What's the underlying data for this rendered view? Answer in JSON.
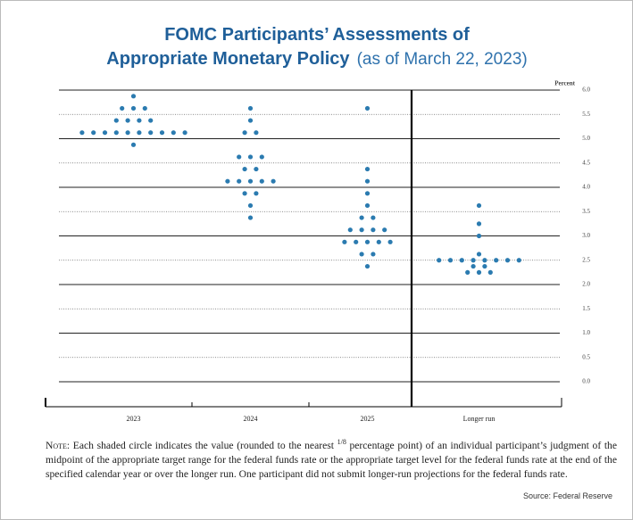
{
  "chart_data": {
    "type": "dot",
    "title": "FOMC Participants’ Assessments of",
    "title_line2": "Appropriate Monetary Policy",
    "subtitle": "(as of March 22, 2023)",
    "y_label": "Percent",
    "categories": [
      "2023",
      "2024",
      "2025",
      "Longer run"
    ],
    "values": [
      [
        {
          "rate": 5.875,
          "count": 1
        },
        {
          "rate": 5.625,
          "count": 3
        },
        {
          "rate": 5.375,
          "count": 4
        },
        {
          "rate": 5.125,
          "count": 10
        },
        {
          "rate": 4.875,
          "count": 1
        }
      ],
      [
        {
          "rate": 5.625,
          "count": 1
        },
        {
          "rate": 5.375,
          "count": 1
        },
        {
          "rate": 5.125,
          "count": 2
        },
        {
          "rate": 4.625,
          "count": 3
        },
        {
          "rate": 4.375,
          "count": 2
        },
        {
          "rate": 4.125,
          "count": 5
        },
        {
          "rate": 3.875,
          "count": 2
        },
        {
          "rate": 3.625,
          "count": 1
        },
        {
          "rate": 3.375,
          "count": 1
        }
      ],
      [
        {
          "rate": 5.625,
          "count": 1
        },
        {
          "rate": 4.375,
          "count": 1
        },
        {
          "rate": 4.125,
          "count": 1
        },
        {
          "rate": 3.875,
          "count": 1
        },
        {
          "rate": 3.625,
          "count": 1
        },
        {
          "rate": 3.375,
          "count": 2
        },
        {
          "rate": 3.125,
          "count": 4
        },
        {
          "rate": 2.875,
          "count": 5
        },
        {
          "rate": 2.625,
          "count": 2
        },
        {
          "rate": 2.375,
          "count": 1
        }
      ],
      [
        {
          "rate": 3.625,
          "count": 1
        },
        {
          "rate": 3.25,
          "count": 1
        },
        {
          "rate": 3.0,
          "count": 1
        },
        {
          "rate": 2.625,
          "count": 1
        },
        {
          "rate": 2.5,
          "count": 8
        },
        {
          "rate": 2.375,
          "count": 2
        },
        {
          "rate": 2.25,
          "count": 3
        }
      ]
    ],
    "color": "#2b7bb0",
    "ylim": [
      0,
      6
    ],
    "yticks": [
      {
        "value": 0,
        "label": "0.0"
      },
      {
        "value": 0.5,
        "label": "0.5"
      },
      {
        "value": 1,
        "label": "1.0"
      },
      {
        "value": 1.5,
        "label": "1.5"
      },
      {
        "value": 2,
        "label": "2.0"
      },
      {
        "value": 2.5,
        "label": "2.5"
      },
      {
        "value": 3,
        "label": "3.0"
      },
      {
        "value": 3.5,
        "label": "3.5"
      },
      {
        "value": 4,
        "label": "4.0"
      },
      {
        "value": 4.5,
        "label": "4.5"
      },
      {
        "value": 5,
        "label": "5.0"
      },
      {
        "value": 5.5,
        "label": "5.5"
      },
      {
        "value": 6,
        "label": "6.0"
      }
    ],
    "grid": true,
    "note": {
      "lead": "Note:",
      "before": "Each shaded circle indicates the value (rounded to the nearest",
      "fraction": "1/8",
      "after": "percentage point) of an individual participant’s judgment of the midpoint of the appropriate target range for the federal funds rate or the appropriate target level for the federal funds rate at the end of the specified calendar year or over the longer run. One participant did not submit longer-run projections for the federal funds rate."
    },
    "source": "Source: Federal Reserve"
  }
}
